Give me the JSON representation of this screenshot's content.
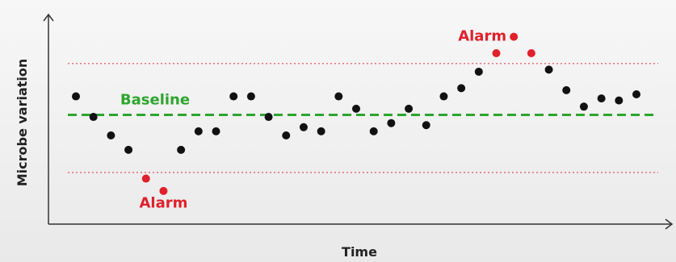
{
  "chart_data": {
    "type": "scatter",
    "xlabel": "Time",
    "ylabel": "Microbe variation",
    "xlim": [
      0,
      33
    ],
    "ylim": [
      0,
      100
    ],
    "grid": false,
    "baseline": {
      "label": "Baseline",
      "value": 50,
      "color": "#2ea52e"
    },
    "control_limits": {
      "upper": 75,
      "lower": 22,
      "color": "#e8737a"
    },
    "points": {
      "x": [
        1,
        2,
        3,
        4,
        5,
        6,
        7,
        8,
        9,
        10,
        11,
        12,
        13,
        14,
        15,
        16,
        17,
        18,
        19,
        20,
        21,
        22,
        23,
        24,
        25,
        26,
        27,
        28,
        29,
        30,
        31,
        32,
        33
      ],
      "y": [
        59,
        49,
        40,
        33,
        19,
        13,
        33,
        42,
        42,
        59,
        59,
        49,
        40,
        44,
        42,
        59,
        53,
        42,
        46,
        53,
        45,
        59,
        63,
        71,
        80,
        88,
        80,
        72,
        62,
        54,
        58,
        57,
        60
      ],
      "colors": [
        "#111111",
        "#111111",
        "#111111",
        "#111111",
        "#e0202b",
        "#e0202b",
        "#111111",
        "#111111",
        "#111111",
        "#111111",
        "#111111",
        "#111111",
        "#111111",
        "#111111",
        "#111111",
        "#111111",
        "#111111",
        "#111111",
        "#111111",
        "#111111",
        "#111111",
        "#111111",
        "#111111",
        "#111111",
        "#e0202b",
        "#e0202b",
        "#e0202b",
        "#111111",
        "#111111",
        "#111111",
        "#111111",
        "#111111",
        "#111111"
      ]
    },
    "annotations": [
      {
        "text": "Alarm",
        "x": 6,
        "y": 5,
        "color": "#e0202b"
      },
      {
        "text": "Alarm",
        "x": 24.2,
        "y": 86,
        "color": "#e0202b"
      }
    ]
  }
}
